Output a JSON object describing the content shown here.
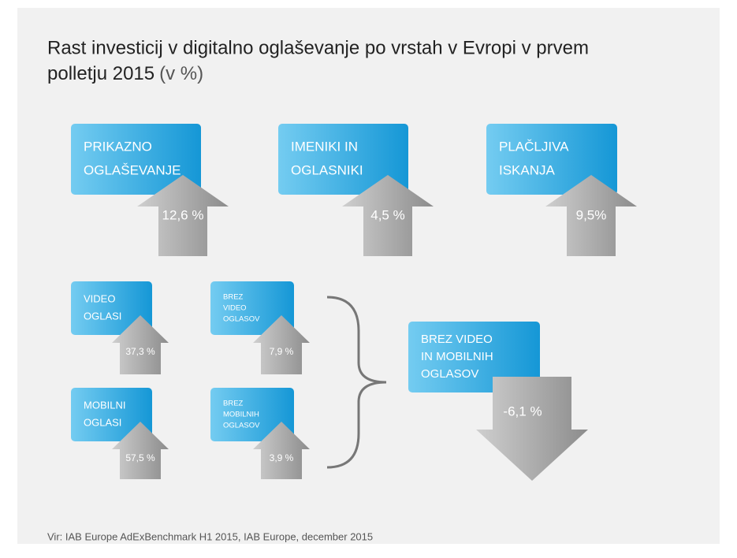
{
  "title": [
    "Rast investicij v digitalno oglaševanje po vrstah v Evropi v prvem",
    "polletju 2015"
  ],
  "unit": "(v %)",
  "items": [
    {
      "label": [
        "PRIKAZNO",
        "OGLAŠEVANJE"
      ],
      "value": "12,6 %"
    },
    {
      "label": [
        "IMENIKI IN",
        "OGLASNIKI"
      ],
      "value": "4,5 %"
    },
    {
      "label": [
        "PLAČLJIVA",
        "ISKANJA"
      ],
      "value": "9,5%"
    },
    {
      "label": [
        "VIDEO",
        "OGLASI"
      ],
      "value": "37,3 %"
    },
    {
      "label": [
        "BREZ",
        "VIDEO",
        "OGLASOV"
      ],
      "value": "7,9 %"
    },
    {
      "label": [
        "MOBILNI",
        "OGLASI"
      ],
      "value": "57,5 %"
    },
    {
      "label": [
        "BREZ",
        "MOBILNIH",
        "OGLASOV"
      ],
      "value": "3,9 %"
    },
    {
      "label": [
        "BREZ VIDEO",
        "IN MOBILNIH",
        "OGLASOV"
      ],
      "value": "-6,1 %"
    }
  ],
  "source": "Vir: IAB Europe AdExBenchmark H1 2015, IAB Europe, december 2015"
}
